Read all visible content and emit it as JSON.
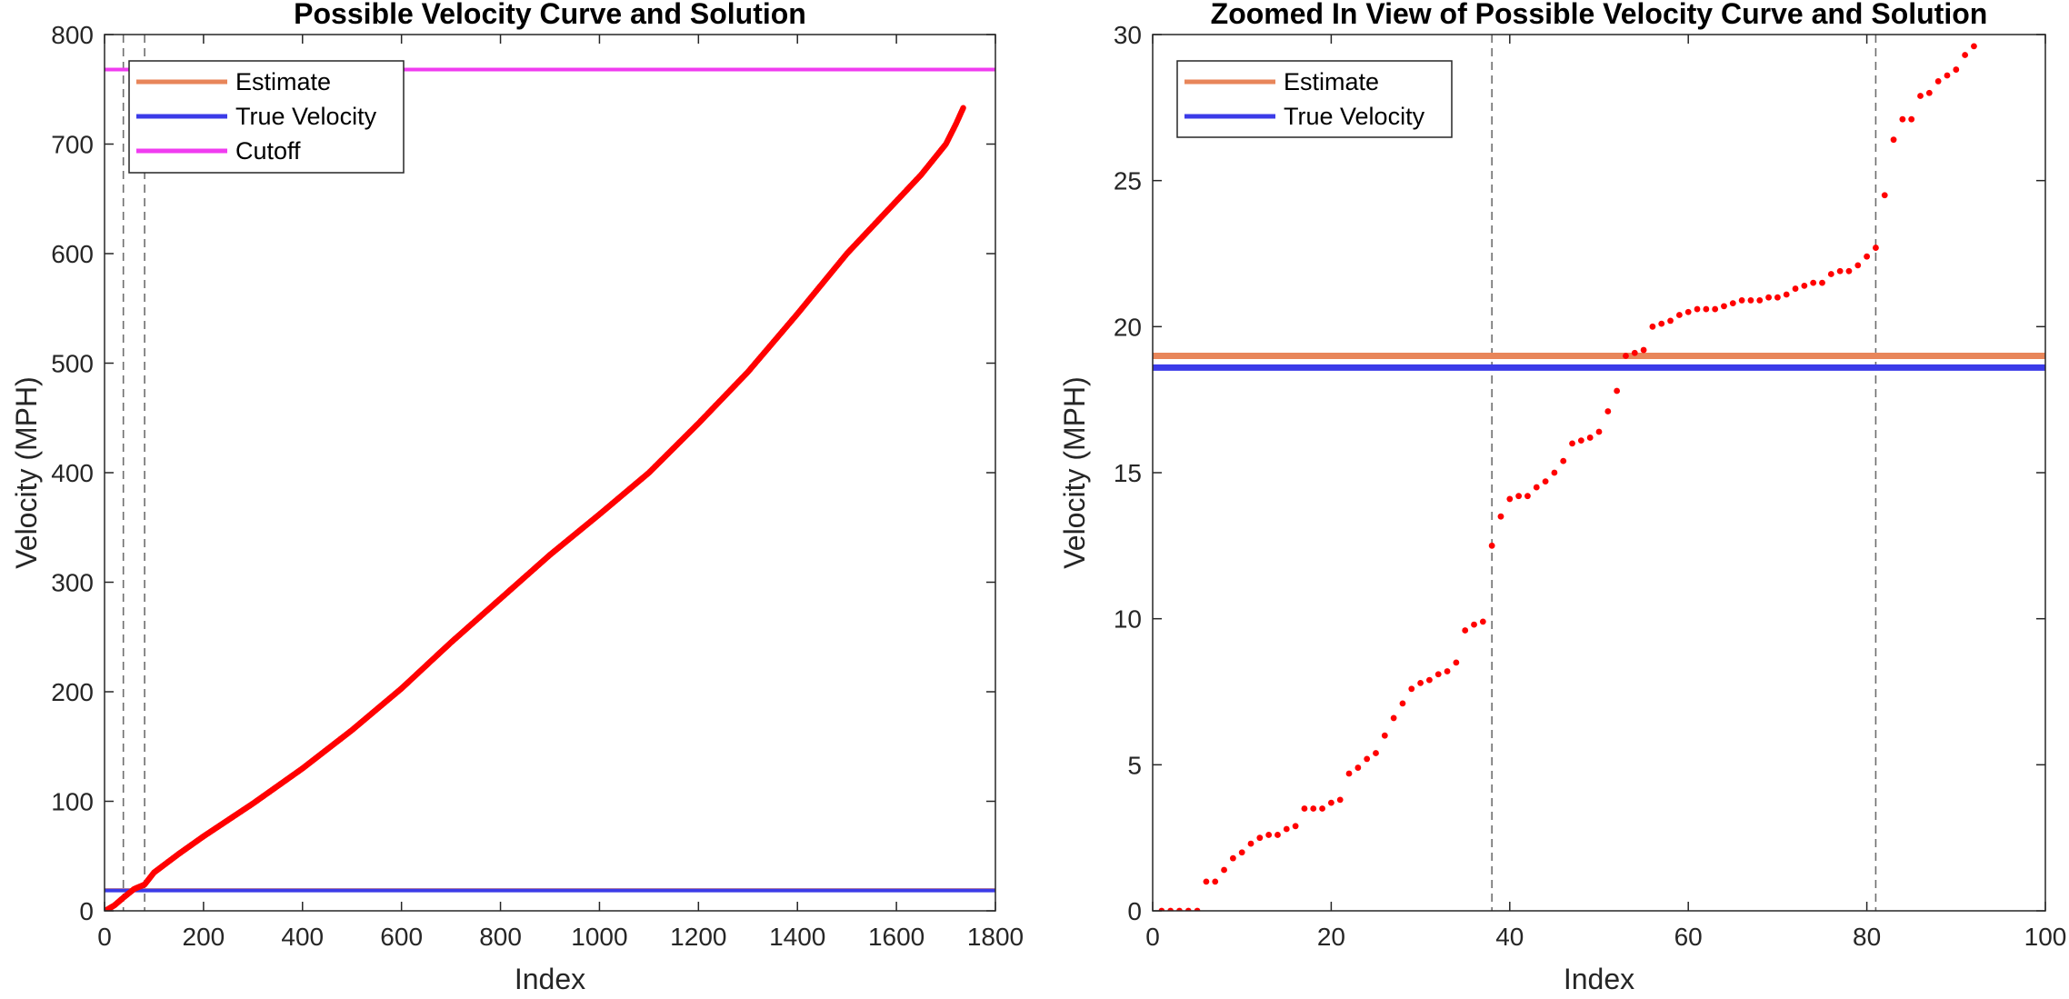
{
  "chart_data": [
    {
      "type": "scatter",
      "title": "Possible Velocity Curve and Solution",
      "xlabel": "Index",
      "ylabel": "Velocity (MPH)",
      "xlim": [
        0,
        1800
      ],
      "ylim": [
        0,
        800
      ],
      "xticks": [
        0,
        200,
        400,
        600,
        800,
        1000,
        1200,
        1400,
        1600,
        1800
      ],
      "yticks": [
        0,
        100,
        200,
        300,
        400,
        500,
        600,
        700,
        800
      ],
      "grid": false,
      "legend_position": "top-left",
      "legend": [
        "Estimate",
        "True Velocity",
        "Cutoff"
      ],
      "hlines": [
        {
          "name": "Estimate",
          "y": 19.0,
          "color": "#E8865A"
        },
        {
          "name": "True Velocity",
          "y": 18.6,
          "color": "#3B3BE8"
        },
        {
          "name": "Cutoff",
          "y": 768,
          "color": "#F03CF0"
        }
      ],
      "vlines": [
        38,
        81
      ],
      "vline_color": "#6E6E6E",
      "points_color": "#FF0000",
      "curve_knots": {
        "x": [
          1,
          20,
          38,
          60,
          81,
          100,
          150,
          200,
          300,
          400,
          500,
          600,
          700,
          800,
          900,
          1000,
          1100,
          1200,
          1300,
          1400,
          1500,
          1600,
          1650,
          1700,
          1720,
          1735
        ],
        "y": [
          0,
          5,
          12,
          20,
          24,
          35,
          52,
          68,
          98,
          130,
          165,
          203,
          245,
          285,
          325,
          362,
          400,
          445,
          492,
          545,
          600,
          648,
          672,
          700,
          718,
          733
        ]
      }
    },
    {
      "type": "scatter",
      "title": "Zoomed In View of Possible Velocity Curve and Solution",
      "xlabel": "Index",
      "ylabel": "Velocity (MPH)",
      "xlim": [
        0,
        100
      ],
      "ylim": [
        0,
        30
      ],
      "xticks": [
        0,
        20,
        40,
        60,
        80,
        100
      ],
      "yticks": [
        0,
        5,
        10,
        15,
        20,
        25,
        30
      ],
      "grid": false,
      "legend_position": "top-left",
      "legend": [
        "Estimate",
        "True Velocity"
      ],
      "hlines": [
        {
          "name": "Estimate",
          "y": 19.0,
          "color": "#E8865A"
        },
        {
          "name": "True Velocity",
          "y": 18.6,
          "color": "#3B3BE8"
        }
      ],
      "vlines": [
        38,
        81
      ],
      "vline_color": "#6E6E6E",
      "points_color": "#FF0000",
      "points": {
        "x": [
          1,
          2,
          3,
          4,
          5,
          6,
          7,
          8,
          9,
          10,
          11,
          12,
          13,
          14,
          15,
          16,
          17,
          18,
          19,
          20,
          21,
          22,
          23,
          24,
          25,
          26,
          27,
          28,
          29,
          30,
          31,
          32,
          33,
          34,
          35,
          36,
          37,
          38,
          39,
          40,
          41,
          42,
          43,
          44,
          45,
          46,
          47,
          48,
          49,
          50,
          51,
          52,
          53,
          54,
          55,
          56,
          57,
          58,
          59,
          60,
          61,
          62,
          63,
          64,
          65,
          66,
          67,
          68,
          69,
          70,
          71,
          72,
          73,
          74,
          75,
          76,
          77,
          78,
          79,
          80,
          81,
          82,
          83,
          84,
          85,
          86,
          87,
          88,
          89,
          90,
          91,
          92
        ],
        "y": [
          0,
          0,
          0,
          0,
          0,
          1.0,
          1.0,
          1.4,
          1.8,
          2.0,
          2.3,
          2.5,
          2.6,
          2.6,
          2.8,
          2.9,
          3.5,
          3.5,
          3.5,
          3.7,
          3.8,
          4.7,
          4.9,
          5.2,
          5.4,
          6.0,
          6.6,
          7.1,
          7.6,
          7.8,
          7.9,
          8.1,
          8.2,
          8.5,
          9.6,
          9.8,
          9.9,
          12.5,
          13.5,
          14.1,
          14.2,
          14.2,
          14.5,
          14.7,
          15.0,
          15.4,
          16.0,
          16.1,
          16.2,
          16.4,
          17.1,
          17.8,
          19.0,
          19.1,
          19.2,
          20.0,
          20.1,
          20.2,
          20.4,
          20.5,
          20.6,
          20.6,
          20.6,
          20.7,
          20.8,
          20.9,
          20.9,
          20.9,
          21.0,
          21.0,
          21.1,
          21.3,
          21.4,
          21.5,
          21.5,
          21.8,
          21.9,
          21.9,
          22.1,
          22.4,
          22.7,
          24.5,
          26.4,
          27.1,
          27.1,
          27.9,
          28.0,
          28.4,
          28.6,
          28.8,
          29.3,
          29.6
        ]
      }
    }
  ]
}
